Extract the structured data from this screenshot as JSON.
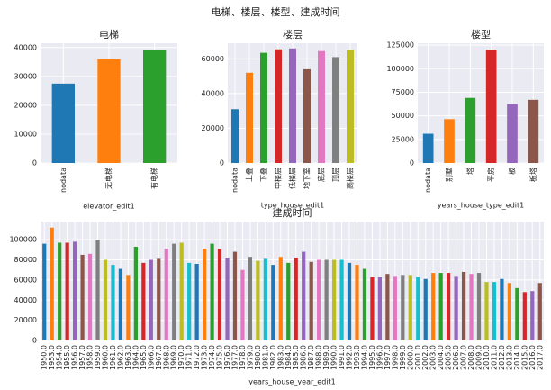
{
  "title": "电梯、楼层、楼型、建成时间",
  "chart_data": [
    {
      "type": "bar",
      "title": "电梯",
      "xlabel": "elevator_edit1",
      "categories": [
        "nodata",
        "无电梯",
        "有电梯"
      ],
      "values": [
        27500,
        36000,
        39000
      ],
      "colors": [
        "#1f77b4",
        "#ff7f0e",
        "#2ca02c",
        "#d62728",
        "#9467bd",
        "#8c564b",
        "#e377c2",
        "#7f7f7f",
        "#bcbd22",
        "#17becf"
      ],
      "ylim": [
        0,
        41500
      ],
      "yticks": [
        0,
        10000,
        20000,
        30000,
        40000
      ],
      "grid": true
    },
    {
      "type": "bar",
      "title": "楼层",
      "xlabel": "type_house_edit1",
      "categories": [
        "nodata",
        "上叠",
        "下叠",
        "中楼层",
        "低楼层",
        "地下室",
        "底层",
        "顶层",
        "高楼层"
      ],
      "values": [
        31000,
        52000,
        63500,
        65500,
        66000,
        54000,
        64500,
        61000,
        65000
      ],
      "colors": [
        "#1f77b4",
        "#ff7f0e",
        "#2ca02c",
        "#d62728",
        "#9467bd",
        "#8c564b",
        "#e377c2",
        "#7f7f7f",
        "#bcbd22",
        "#17becf"
      ],
      "ylim": [
        0,
        69000
      ],
      "yticks": [
        0,
        20000,
        40000,
        60000
      ],
      "grid": true
    },
    {
      "type": "bar",
      "title": "楼型",
      "xlabel": "years_house_type_edit1",
      "categories": [
        "nodata",
        "别墅",
        "塔",
        "平房",
        "板",
        "板塔"
      ],
      "values": [
        31000,
        46500,
        69000,
        120000,
        62500,
        67000
      ],
      "colors": [
        "#1f77b4",
        "#ff7f0e",
        "#2ca02c",
        "#d62728",
        "#9467bd",
        "#8c564b",
        "#e377c2",
        "#7f7f7f",
        "#bcbd22",
        "#17becf"
      ],
      "ylim": [
        0,
        127000
      ],
      "yticks": [
        0,
        25000,
        50000,
        75000,
        100000,
        125000
      ],
      "grid": true
    },
    {
      "type": "bar",
      "title": "建成时间",
      "xlabel": "years_house_year_edit1",
      "categories": [
        "1950.0",
        "1953.0",
        "1954.0",
        "1955.0",
        "1956.0",
        "1957.0",
        "1958.0",
        "1959.0",
        "1960.0",
        "1961.0",
        "1962.0",
        "1963.0",
        "1964.0",
        "1965.0",
        "1966.0",
        "1967.0",
        "1968.0",
        "1969.0",
        "1970.0",
        "1971.0",
        "1972.0",
        "1973.0",
        "1974.0",
        "1975.0",
        "1976.0",
        "1977.0",
        "1978.0",
        "1979.0",
        "1980.0",
        "1981.0",
        "1982.0",
        "1983.0",
        "1984.0",
        "1985.0",
        "1986.0",
        "1987.0",
        "1988.0",
        "1989.0",
        "1990.0",
        "1991.0",
        "1992.0",
        "1993.0",
        "1994.0",
        "1995.0",
        "1996.0",
        "1997.0",
        "1998.0",
        "1999.0",
        "2000.0",
        "2001.0",
        "2002.0",
        "2003.0",
        "2004.0",
        "2005.0",
        "2006.0",
        "2007.0",
        "2008.0",
        "2009.0",
        "2010.0",
        "2011.0",
        "2012.0",
        "2013.0",
        "2014.0",
        "2015.0",
        "2016.0",
        "2017.0"
      ],
      "values": [
        96000,
        112000,
        97000,
        97000,
        98000,
        85000,
        86000,
        100000,
        80000,
        75000,
        71000,
        65000,
        93000,
        77000,
        80000,
        81000,
        91000,
        96000,
        97000,
        77000,
        76000,
        91000,
        96000,
        91000,
        82000,
        88000,
        70000,
        83000,
        79000,
        81000,
        75000,
        83000,
        77000,
        82000,
        88000,
        78000,
        80000,
        80000,
        80000,
        80000,
        77000,
        75000,
        71000,
        63000,
        63000,
        66000,
        64000,
        65000,
        65000,
        63000,
        61000,
        67000,
        67000,
        67000,
        64000,
        68000,
        66000,
        67000,
        58000,
        58000,
        61000,
        57000,
        52000,
        48000,
        49000,
        57000
      ],
      "colors": [
        "#1f77b4",
        "#ff7f0e",
        "#2ca02c",
        "#d62728",
        "#9467bd",
        "#8c564b",
        "#e377c2",
        "#7f7f7f",
        "#bcbd22",
        "#17becf"
      ],
      "ylim": [
        0,
        118000
      ],
      "yticks": [
        0,
        20000,
        40000,
        60000,
        80000,
        100000
      ],
      "grid": true
    }
  ]
}
